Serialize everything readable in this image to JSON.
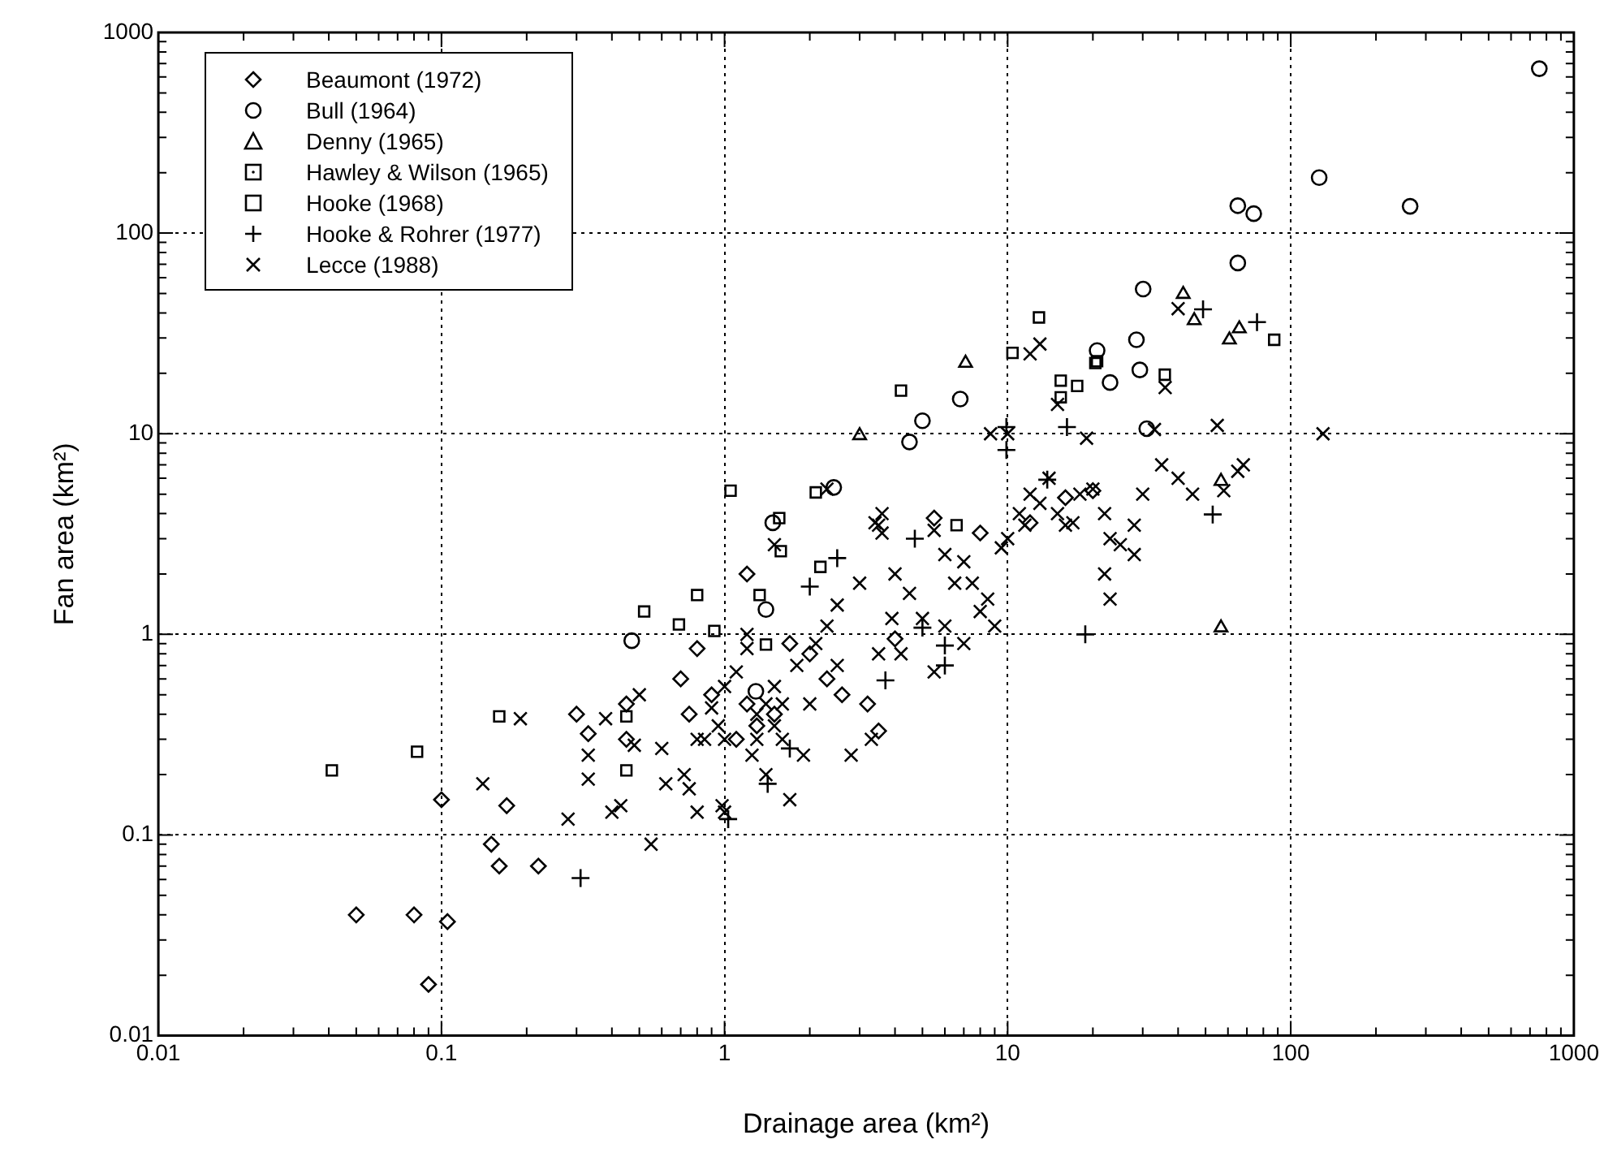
{
  "chart_data": {
    "type": "scatter",
    "xlabel": "Drainage area (km²)",
    "ylabel": "Fan area (km²)",
    "log": "xy",
    "grid": true,
    "legend": "top left",
    "xlim": [
      0.01,
      1000
    ],
    "ylim": [
      0.01,
      1000
    ],
    "xticks": [
      0.01,
      0.1,
      1,
      10,
      100,
      1000
    ],
    "yticks": [
      0.01,
      0.1,
      1,
      10,
      100,
      1000
    ],
    "series": [
      {
        "name": "Beaumont (1972)",
        "color": "#000000",
        "marker": "diamond",
        "x": [
          0.05,
          0.08,
          0.09,
          0.105,
          0.1,
          0.15,
          0.16,
          0.17,
          0.22,
          0.3,
          0.33,
          0.45,
          0.7,
          0.8,
          0.75,
          0.9,
          1.2,
          0.45,
          5.5,
          2,
          2.3,
          2.6,
          3.2,
          3.5,
          1.1,
          1.3,
          1.5,
          4,
          1.7,
          1.2,
          16,
          20,
          8,
          12
        ],
        "values": [
          0.04,
          0.04,
          0.018,
          0.037,
          0.15,
          0.09,
          0.07,
          0.14,
          0.07,
          0.4,
          0.32,
          0.3,
          0.6,
          0.85,
          0.4,
          0.5,
          2.0,
          0.45,
          3.8,
          0.8,
          0.6,
          0.5,
          0.45,
          0.33,
          0.3,
          0.35,
          0.4,
          0.95,
          0.9,
          0.45,
          4.8,
          5.2,
          3.2,
          3.6
        ]
      },
      {
        "name": "Bull (1964)",
        "color": "#000000",
        "marker": "circle",
        "x": [
          0.47,
          1.29,
          1.4,
          1.48,
          2.43,
          4.5,
          5,
          6.8,
          20.7,
          23,
          28.5,
          29.3,
          30.1,
          31,
          65,
          65,
          74,
          126,
          264,
          755
        ],
        "values": [
          0.93,
          0.52,
          1.33,
          3.6,
          5.4,
          9.1,
          11.6,
          14.9,
          26,
          18,
          29.4,
          20.8,
          52.6,
          10.6,
          71,
          137,
          125,
          189,
          136,
          660
        ]
      },
      {
        "name": "Denny (1965)",
        "color": "#000000",
        "marker": "triangle",
        "x": [
          3,
          7.1,
          41.7,
          45.6,
          60.7,
          65.8,
          56.7,
          56.7
        ],
        "values": [
          9.8,
          22.5,
          49.6,
          36.7,
          29.4,
          33.4,
          5.8,
          1.08
        ]
      },
      {
        "name": "Hawley & Wilson (1965)",
        "color": "#000000",
        "marker": "square-dot",
        "x": [
          0.45,
          0.45,
          0.69,
          1.4,
          1.56,
          2.18,
          6.6,
          10.4,
          17.6,
          20.4,
          35.9,
          87.4
        ],
        "values": [
          0.21,
          0.39,
          1.12,
          0.89,
          3.8,
          2.17,
          3.5,
          25.3,
          17.3,
          22.5,
          19.7,
          29.4
        ]
      },
      {
        "name": "Hooke (1968)",
        "color": "#000000",
        "marker": "square",
        "x": [
          0.041,
          0.082,
          0.16,
          0.52,
          0.8,
          0.92,
          1.05,
          1.33,
          1.58,
          2.1,
          4.2,
          12.9,
          15.4,
          15.4,
          20.7
        ],
        "values": [
          0.21,
          0.26,
          0.39,
          1.3,
          1.57,
          1.04,
          5.2,
          1.57,
          2.6,
          5.1,
          16.4,
          38,
          18.4,
          15.2,
          23
        ]
      },
      {
        "name": "Hooke & Rohrer (1977)",
        "color": "#000000",
        "marker": "cross",
        "x": [
          0.31,
          1.03,
          1.42,
          1.7,
          2.0,
          2.5,
          3.7,
          4.7,
          5.0,
          6.0,
          6.0,
          9.9,
          9.9,
          13.8,
          16.2,
          18.8,
          49,
          53,
          76
        ],
        "values": [
          0.061,
          0.12,
          0.18,
          0.27,
          1.73,
          2.4,
          0.59,
          3,
          1.08,
          0.88,
          0.7,
          8.3,
          10.8,
          5.9,
          10.8,
          1.0,
          41.7,
          3.96,
          36
        ]
      },
      {
        "name": "Lecce (1988)",
        "color": "#000000",
        "marker": "x",
        "x": [
          0.14,
          0.19,
          0.28,
          0.33,
          0.33,
          0.38,
          0.4,
          0.43,
          0.48,
          0.5,
          0.55,
          0.6,
          0.62,
          0.72,
          0.75,
          0.8,
          0.85,
          0.9,
          0.95,
          0.98,
          1.0,
          1.0,
          1.0,
          1.1,
          1.2,
          1.25,
          1.3,
          1.3,
          1.4,
          1.4,
          1.5,
          1.5,
          1.6,
          1.7,
          1.6,
          1.8,
          1.9,
          2.0,
          2.1,
          2.3,
          2.5,
          2.5,
          2.8,
          3.0,
          3.3,
          3.5,
          3.5,
          3.6,
          3.9,
          4.2,
          4.5,
          5,
          5.5,
          6,
          6.5,
          7,
          7.5,
          8,
          8.5,
          9,
          9.5,
          10,
          11,
          11.5,
          12,
          13,
          14,
          15,
          16,
          17,
          18,
          20,
          22,
          23,
          25,
          28,
          30,
          33,
          36,
          40,
          15,
          13,
          12,
          19,
          22,
          23,
          28,
          35,
          40,
          45,
          55,
          58,
          65,
          68,
          130,
          2.3,
          3.4,
          1.5,
          8.7,
          10,
          3.6,
          5.5,
          4,
          6,
          7,
          0.8,
          1.2
        ],
        "values": [
          0.18,
          0.38,
          0.12,
          0.25,
          0.19,
          0.38,
          0.13,
          0.14,
          0.28,
          0.5,
          0.09,
          0.27,
          0.18,
          0.2,
          0.17,
          0.13,
          0.3,
          0.43,
          0.35,
          0.14,
          0.13,
          0.55,
          0.3,
          0.65,
          0.85,
          0.25,
          0.3,
          0.4,
          0.2,
          0.45,
          0.35,
          0.55,
          0.45,
          0.15,
          0.3,
          0.7,
          0.25,
          0.45,
          0.9,
          1.1,
          1.4,
          0.7,
          0.25,
          1.8,
          0.3,
          3.5,
          0.8,
          3.2,
          1.2,
          0.8,
          1.6,
          1.2,
          0.65,
          2.5,
          1.8,
          2.3,
          1.8,
          1.3,
          1.5,
          1.1,
          2.7,
          3,
          4,
          3.5,
          5,
          4.5,
          6,
          4,
          3.5,
          3.6,
          5,
          5.3,
          4,
          3,
          2.8,
          3.5,
          5,
          10.5,
          17,
          42,
          14,
          28,
          25,
          9.5,
          2,
          1.5,
          2.5,
          7,
          6,
          5,
          11,
          5.2,
          6.5,
          7,
          10,
          5.3,
          3.6,
          2.8,
          10,
          10,
          4,
          3.3,
          2,
          1.1,
          0.9,
          0.3,
          1.0
        ]
      }
    ]
  }
}
